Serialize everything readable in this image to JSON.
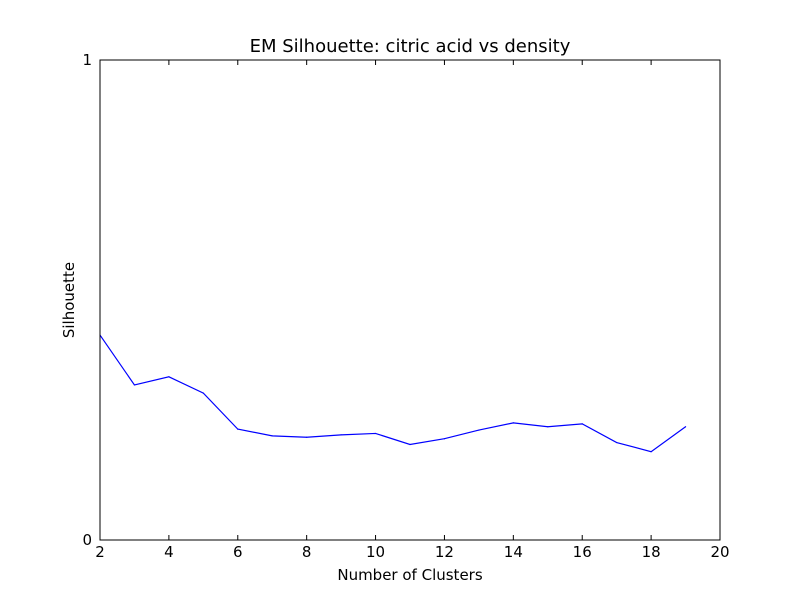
{
  "chart_data": {
    "type": "line",
    "title": "EM Silhouette: citric acid vs density",
    "xlabel": "Number of Clusters",
    "ylabel": "Silhouette",
    "xlim": [
      2,
      20
    ],
    "ylim": [
      0,
      1
    ],
    "xticks": [
      2,
      4,
      6,
      8,
      10,
      12,
      14,
      16,
      18,
      20
    ],
    "yticks": [
      0,
      1
    ],
    "grid": false,
    "series": [
      {
        "color": "#0000ff",
        "x": [
          2,
          3,
          4,
          5,
          6,
          7,
          8,
          9,
          10,
          11,
          12,
          13,
          14,
          15,
          16,
          17,
          18,
          19
        ],
        "y": [
          0.427,
          0.323,
          0.34,
          0.306,
          0.231,
          0.217,
          0.214,
          0.219,
          0.222,
          0.199,
          0.211,
          0.229,
          0.244,
          0.236,
          0.242,
          0.203,
          0.184,
          0.236
        ]
      }
    ]
  }
}
